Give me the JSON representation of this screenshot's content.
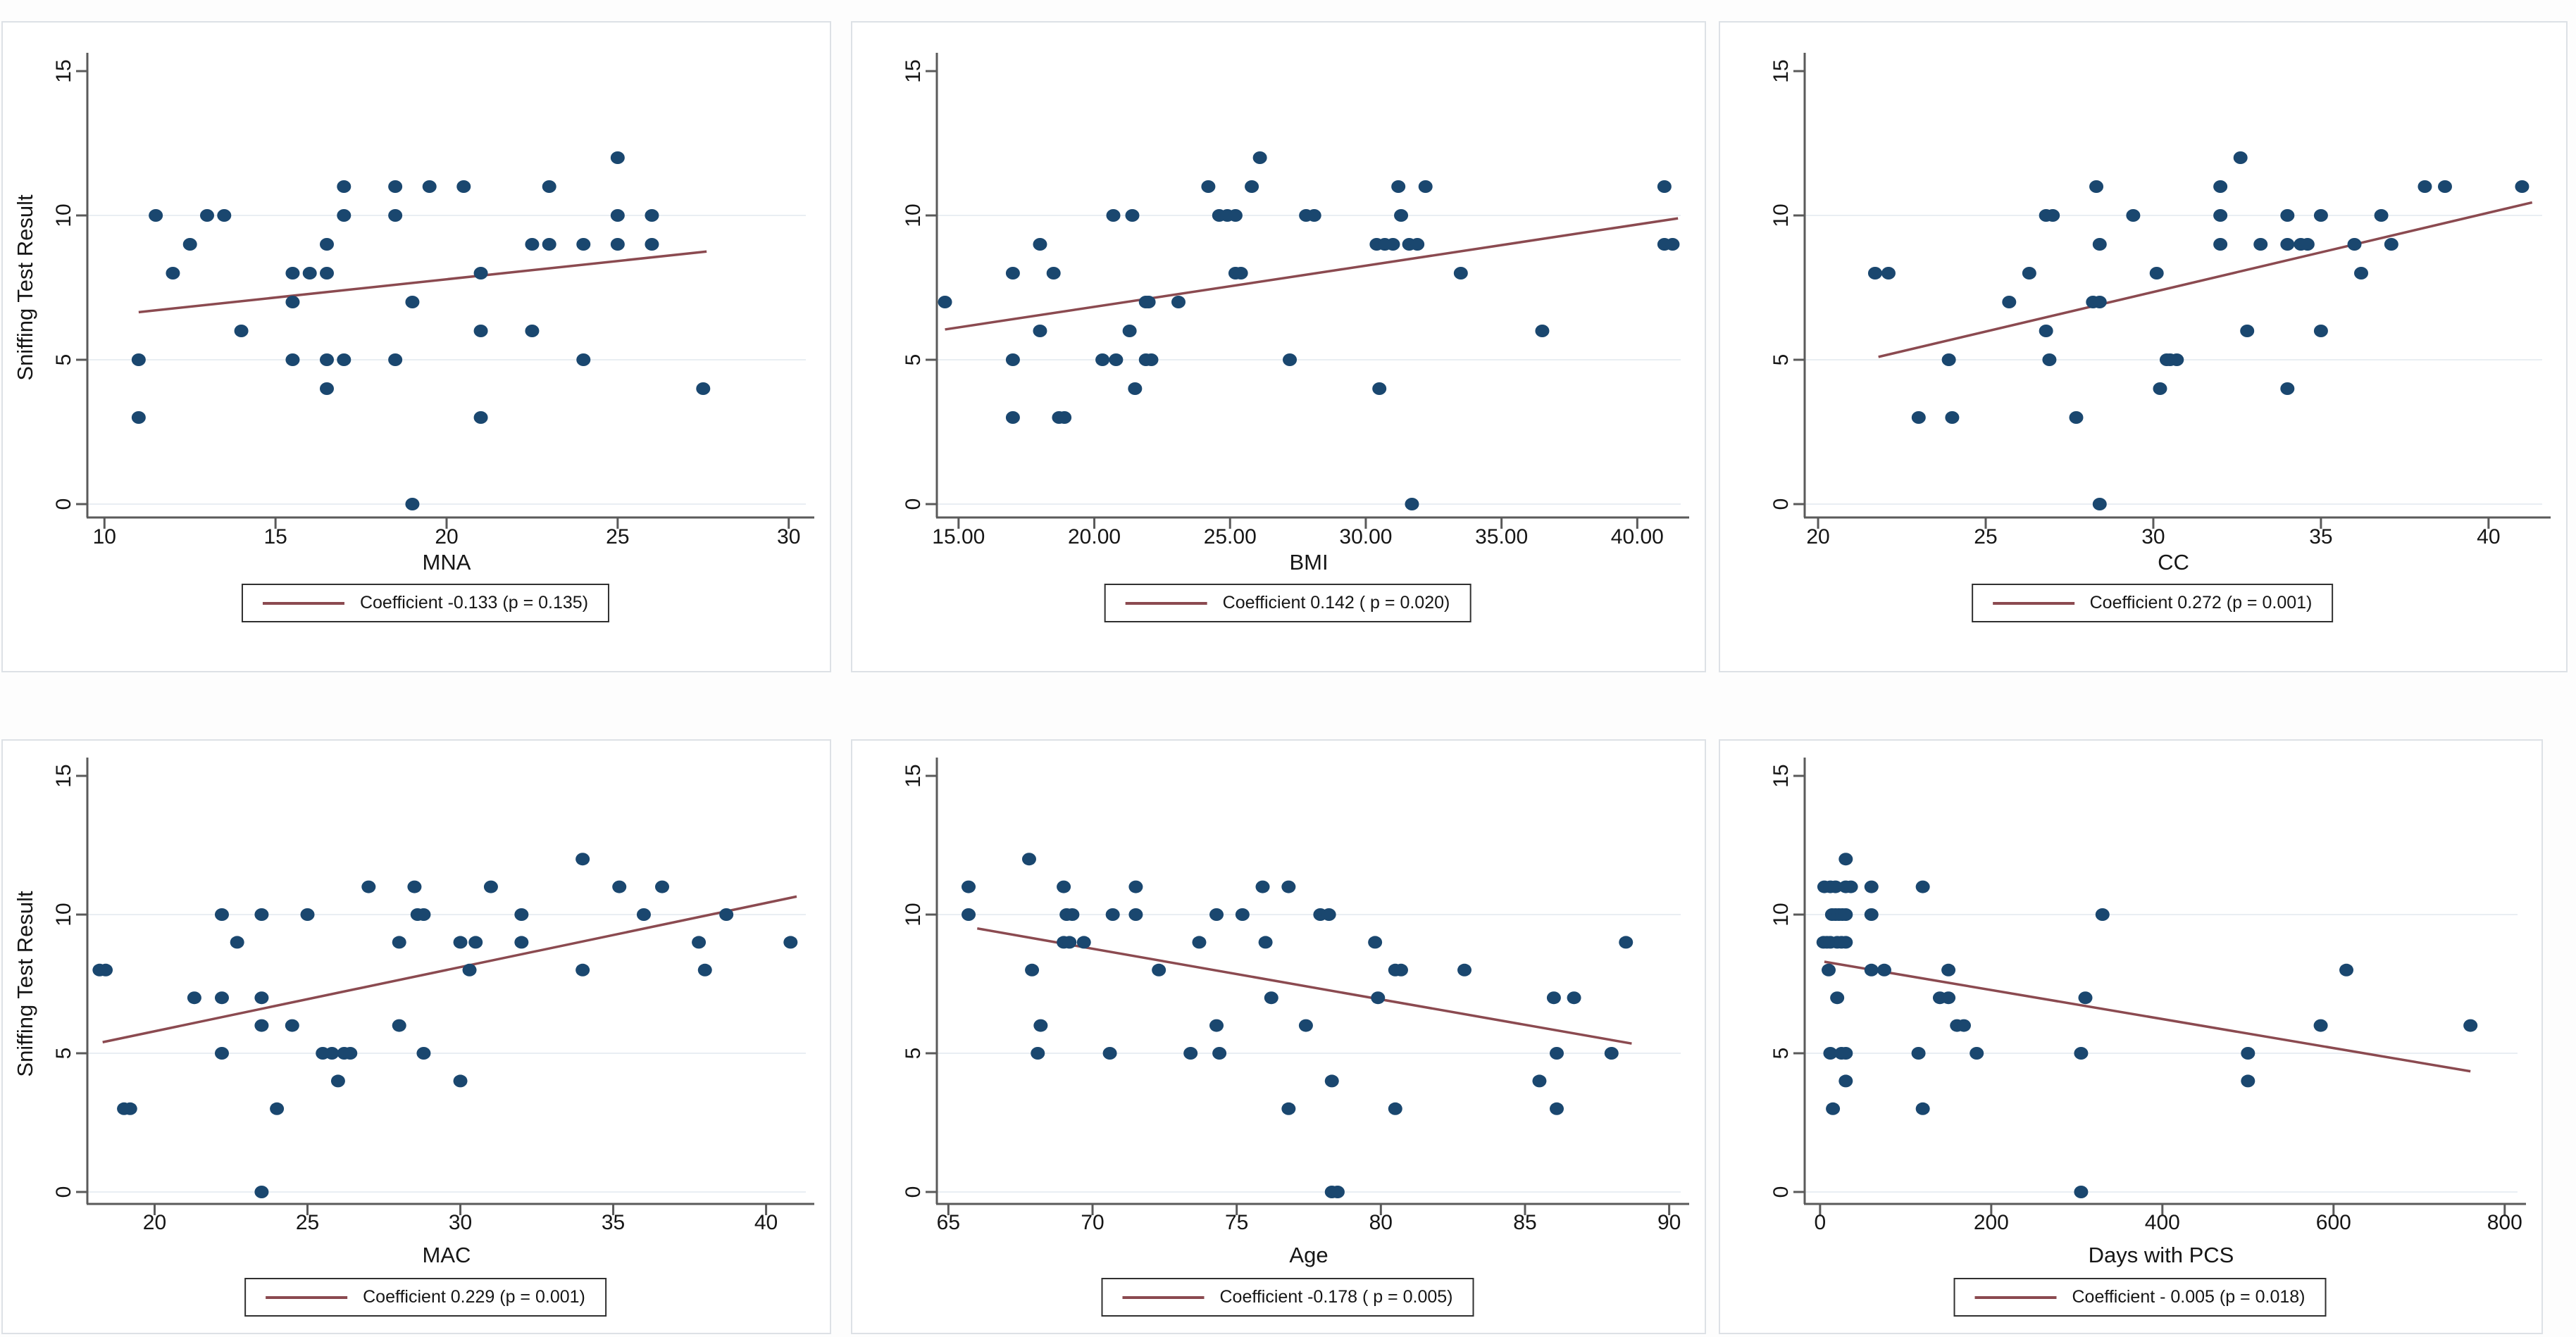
{
  "styles": {
    "page_bg": "#fdfdfd",
    "panel_bg": "#ffffff",
    "panel_border": "#dde1e6",
    "dot_color": "#1a476f",
    "trend_color": "#8b4a50",
    "grid_color": "#e9eef3",
    "axis_color": "#5a5a5a",
    "text_color": "#161616",
    "legend_border": "#303030"
  },
  "y_axis_title": "Sniffing Test Result",
  "chart_data": [
    {
      "id": "mna",
      "type": "scatter",
      "xlabel": "MNA",
      "ylabel": "Sniffing Test Result",
      "legend": "Coefficient -0.133 (p = 0.135)",
      "xlim": [
        9.5,
        30.5
      ],
      "ylim": [
        0,
        15
      ],
      "xticks": [
        10,
        15,
        20,
        25,
        30
      ],
      "xtick_labels": [
        "10",
        "15",
        "20",
        "25",
        "30"
      ],
      "yticks": [
        0,
        5,
        10,
        15
      ],
      "ytick_labels": [
        "0",
        "5",
        "10",
        "15"
      ],
      "grid_y": [
        0,
        5,
        10
      ],
      "legend_position": "bottom",
      "grid": "horizontal",
      "trend": {
        "x1": 11,
        "y1": 6.65,
        "x2": 27.6,
        "y2": 8.75
      },
      "points": [
        [
          25,
          12
        ],
        [
          17,
          11
        ],
        [
          18.5,
          11
        ],
        [
          19.5,
          11
        ],
        [
          20.5,
          11
        ],
        [
          23,
          11
        ],
        [
          11.5,
          10
        ],
        [
          13,
          10
        ],
        [
          13.5,
          10
        ],
        [
          17,
          10
        ],
        [
          18.5,
          10
        ],
        [
          25,
          10
        ],
        [
          26,
          10
        ],
        [
          12.5,
          9
        ],
        [
          16.5,
          9
        ],
        [
          22.5,
          9
        ],
        [
          23,
          9
        ],
        [
          24,
          9
        ],
        [
          25,
          9
        ],
        [
          26,
          9
        ],
        [
          12,
          8
        ],
        [
          15.5,
          8
        ],
        [
          16,
          8
        ],
        [
          16.5,
          8
        ],
        [
          21,
          8
        ],
        [
          15.5,
          7
        ],
        [
          19,
          7
        ],
        [
          14,
          6
        ],
        [
          21,
          6
        ],
        [
          22.5,
          6
        ],
        [
          11,
          5
        ],
        [
          15.5,
          5
        ],
        [
          16.5,
          5
        ],
        [
          17,
          5
        ],
        [
          18.5,
          5
        ],
        [
          24,
          5
        ],
        [
          16.5,
          4
        ],
        [
          27.5,
          4
        ],
        [
          11,
          3
        ],
        [
          21,
          3
        ],
        [
          19,
          0
        ]
      ]
    },
    {
      "id": "bmi",
      "type": "scatter",
      "xlabel": "BMI",
      "ylabel": "",
      "legend": "Coefficient 0.142 ( p = 0.020)",
      "xlim": [
        14.2,
        41.6
      ],
      "ylim": [
        0,
        15
      ],
      "xticks": [
        15,
        20,
        25,
        30,
        35,
        40
      ],
      "xtick_labels": [
        "15.00",
        "20.00",
        "25.00",
        "30.00",
        "35.00",
        "40.00"
      ],
      "yticks": [
        0,
        5,
        10,
        15
      ],
      "ytick_labels": [
        "0",
        "5",
        "10",
        "15"
      ],
      "grid_y": [
        0,
        5,
        10
      ],
      "legend_position": "bottom",
      "grid": "horizontal",
      "trend": {
        "x1": 14.5,
        "y1": 6.05,
        "x2": 41.5,
        "y2": 9.9
      },
      "points": [
        [
          26.1,
          12
        ],
        [
          24.2,
          11
        ],
        [
          25.8,
          11
        ],
        [
          31.2,
          11
        ],
        [
          32.2,
          11
        ],
        [
          41,
          11
        ],
        [
          20.7,
          10
        ],
        [
          21.4,
          10
        ],
        [
          24.6,
          10
        ],
        [
          24.9,
          10
        ],
        [
          25.2,
          10
        ],
        [
          27.8,
          10
        ],
        [
          28.1,
          10
        ],
        [
          31.3,
          10
        ],
        [
          18,
          9
        ],
        [
          30.4,
          9
        ],
        [
          30.7,
          9
        ],
        [
          31,
          9
        ],
        [
          31.6,
          9
        ],
        [
          31.9,
          9
        ],
        [
          41,
          9
        ],
        [
          41.3,
          9
        ],
        [
          17,
          8
        ],
        [
          18.5,
          8
        ],
        [
          25.2,
          8
        ],
        [
          25.4,
          8
        ],
        [
          33.5,
          8
        ],
        [
          14.5,
          7
        ],
        [
          21.9,
          7
        ],
        [
          22,
          7
        ],
        [
          23.1,
          7
        ],
        [
          18,
          6
        ],
        [
          21.3,
          6
        ],
        [
          36.5,
          6
        ],
        [
          17,
          5
        ],
        [
          20.3,
          5
        ],
        [
          20.8,
          5
        ],
        [
          21.9,
          5
        ],
        [
          22.1,
          5
        ],
        [
          27.2,
          5
        ],
        [
          21.5,
          4
        ],
        [
          30.5,
          4
        ],
        [
          17,
          3
        ],
        [
          18.7,
          3
        ],
        [
          18.9,
          3
        ],
        [
          31.7,
          0
        ]
      ]
    },
    {
      "id": "cc",
      "type": "scatter",
      "xlabel": "CC",
      "ylabel": "",
      "legend": "Coefficient 0.272 (p = 0.001)",
      "xlim": [
        19.6,
        41.6
      ],
      "ylim": [
        0,
        15
      ],
      "xticks": [
        20,
        25,
        30,
        35,
        40
      ],
      "xtick_labels": [
        "20",
        "25",
        "30",
        "35",
        "40"
      ],
      "yticks": [
        0,
        5,
        10,
        15
      ],
      "ytick_labels": [
        "0",
        "5",
        "10",
        "15"
      ],
      "grid_y": [
        0,
        5,
        10
      ],
      "legend_position": "bottom",
      "grid": "horizontal",
      "trend": {
        "x1": 21.8,
        "y1": 5.1,
        "x2": 41.3,
        "y2": 10.45
      },
      "points": [
        [
          32.6,
          12
        ],
        [
          28.3,
          11
        ],
        [
          32,
          11
        ],
        [
          38.1,
          11
        ],
        [
          38.7,
          11
        ],
        [
          41,
          11
        ],
        [
          26.8,
          10
        ],
        [
          27,
          10
        ],
        [
          29.4,
          10
        ],
        [
          32,
          10
        ],
        [
          34,
          10
        ],
        [
          35,
          10
        ],
        [
          36.8,
          10
        ],
        [
          28.4,
          9
        ],
        [
          32,
          9
        ],
        [
          33.2,
          9
        ],
        [
          34,
          9
        ],
        [
          34.4,
          9
        ],
        [
          34.6,
          9
        ],
        [
          36,
          9
        ],
        [
          37.1,
          9
        ],
        [
          21.7,
          8
        ],
        [
          22.1,
          8
        ],
        [
          26.3,
          8
        ],
        [
          30.1,
          8
        ],
        [
          36.2,
          8
        ],
        [
          25.7,
          7
        ],
        [
          28.2,
          7
        ],
        [
          28.4,
          7
        ],
        [
          26.8,
          6
        ],
        [
          32.8,
          6
        ],
        [
          35,
          6
        ],
        [
          23.9,
          5
        ],
        [
          26.9,
          5
        ],
        [
          30.4,
          5
        ],
        [
          30.5,
          5
        ],
        [
          30.7,
          5
        ],
        [
          30.2,
          4
        ],
        [
          34,
          4
        ],
        [
          23,
          3
        ],
        [
          24,
          3
        ],
        [
          27.7,
          3
        ],
        [
          28.4,
          0
        ]
      ]
    },
    {
      "id": "mac",
      "type": "scatter",
      "xlabel": "MAC",
      "ylabel": "Sniffing Test Result",
      "legend": "Coefficient 0.229 (p = 0.001)",
      "xlim": [
        17.8,
        41.3
      ],
      "ylim": [
        0,
        15
      ],
      "xticks": [
        20,
        25,
        30,
        35,
        40
      ],
      "xtick_labels": [
        "20",
        "25",
        "30",
        "35",
        "40"
      ],
      "yticks": [
        0,
        5,
        10,
        15
      ],
      "ytick_labels": [
        "0",
        "5",
        "10",
        "15"
      ],
      "grid_y": [
        0,
        5,
        10
      ],
      "legend_position": "bottom",
      "grid": "horizontal",
      "trend": {
        "x1": 18.3,
        "y1": 5.4,
        "x2": 41,
        "y2": 10.65
      },
      "points": [
        [
          34,
          12
        ],
        [
          27,
          11
        ],
        [
          28.5,
          11
        ],
        [
          31,
          11
        ],
        [
          35.2,
          11
        ],
        [
          36.6,
          11
        ],
        [
          22.2,
          10
        ],
        [
          23.5,
          10
        ],
        [
          25,
          10
        ],
        [
          28.6,
          10
        ],
        [
          28.8,
          10
        ],
        [
          32,
          10
        ],
        [
          36,
          10
        ],
        [
          38.7,
          10
        ],
        [
          22.7,
          9
        ],
        [
          28,
          9
        ],
        [
          30,
          9
        ],
        [
          30.5,
          9
        ],
        [
          32,
          9
        ],
        [
          37.8,
          9
        ],
        [
          40.8,
          9
        ],
        [
          18.2,
          8
        ],
        [
          18.4,
          8
        ],
        [
          30.3,
          8
        ],
        [
          34,
          8
        ],
        [
          38,
          8
        ],
        [
          21.3,
          7
        ],
        [
          22.2,
          7
        ],
        [
          23.5,
          7
        ],
        [
          23.5,
          6
        ],
        [
          24.5,
          6
        ],
        [
          28,
          6
        ],
        [
          22.2,
          5
        ],
        [
          25.5,
          5
        ],
        [
          25.8,
          5
        ],
        [
          26.2,
          5
        ],
        [
          26.4,
          5
        ],
        [
          28.8,
          5
        ],
        [
          26,
          4
        ],
        [
          30,
          4
        ],
        [
          19,
          3
        ],
        [
          19.2,
          3
        ],
        [
          24,
          3
        ],
        [
          23.5,
          0
        ]
      ]
    },
    {
      "id": "age",
      "type": "scatter",
      "xlabel": "Age",
      "ylabel": "",
      "legend": "Coefficient -0.178 ( p = 0.005)",
      "xlim": [
        64.6,
        90.4
      ],
      "ylim": [
        0,
        15
      ],
      "xticks": [
        65,
        70,
        75,
        80,
        85,
        90
      ],
      "xtick_labels": [
        "65",
        "70",
        "75",
        "80",
        "85",
        "90"
      ],
      "yticks": [
        0,
        5,
        10,
        15
      ],
      "ytick_labels": [
        "0",
        "5",
        "10",
        "15"
      ],
      "grid_y": [
        0,
        5,
        10
      ],
      "legend_position": "bottom",
      "grid": "horizontal",
      "trend": {
        "x1": 66,
        "y1": 9.5,
        "x2": 88.7,
        "y2": 5.35
      },
      "points": [
        [
          67.8,
          12
        ],
        [
          65.7,
          11
        ],
        [
          69,
          11
        ],
        [
          71.5,
          11
        ],
        [
          75.9,
          11
        ],
        [
          76.8,
          11
        ],
        [
          65.7,
          10
        ],
        [
          69.1,
          10
        ],
        [
          69.3,
          10
        ],
        [
          70.7,
          10
        ],
        [
          71.5,
          10
        ],
        [
          74.3,
          10
        ],
        [
          75.2,
          10
        ],
        [
          77.9,
          10
        ],
        [
          78.2,
          10
        ],
        [
          69,
          9
        ],
        [
          69.2,
          9
        ],
        [
          69.7,
          9
        ],
        [
          73.7,
          9
        ],
        [
          76,
          9
        ],
        [
          79.8,
          9
        ],
        [
          88.5,
          9
        ],
        [
          67.9,
          8
        ],
        [
          72.3,
          8
        ],
        [
          80.5,
          8
        ],
        [
          80.7,
          8
        ],
        [
          82.9,
          8
        ],
        [
          76.2,
          7
        ],
        [
          79.9,
          7
        ],
        [
          86,
          7
        ],
        [
          86.7,
          7
        ],
        [
          68.2,
          6
        ],
        [
          74.3,
          6
        ],
        [
          77.4,
          6
        ],
        [
          68.1,
          5
        ],
        [
          70.6,
          5
        ],
        [
          73.4,
          5
        ],
        [
          74.4,
          5
        ],
        [
          86.1,
          5
        ],
        [
          88,
          5
        ],
        [
          78.3,
          4
        ],
        [
          85.5,
          4
        ],
        [
          76.8,
          3
        ],
        [
          80.5,
          3
        ],
        [
          86.1,
          3
        ],
        [
          78.3,
          0
        ],
        [
          78.5,
          0
        ]
      ]
    },
    {
      "id": "days-with-pcs",
      "type": "scatter",
      "xlabel": "Days with PCS",
      "ylabel": "",
      "legend": "Coefficient - 0.005 (p = 0.018)",
      "xlim": [
        -18,
        815
      ],
      "ylim": [
        0,
        15
      ],
      "xticks": [
        0,
        200,
        400,
        600,
        800
      ],
      "xtick_labels": [
        "0",
        "200",
        "400",
        "600",
        "800"
      ],
      "yticks": [
        0,
        5,
        10,
        15
      ],
      "ytick_labels": [
        "0",
        "5",
        "10",
        "15"
      ],
      "grid_y": [
        0,
        5,
        10
      ],
      "legend_position": "bottom",
      "grid": "horizontal",
      "trend": {
        "x1": 5,
        "y1": 8.3,
        "x2": 760,
        "y2": 4.35
      },
      "points": [
        [
          30,
          12
        ],
        [
          5,
          11
        ],
        [
          12,
          11
        ],
        [
          18,
          11
        ],
        [
          30,
          11
        ],
        [
          36,
          11
        ],
        [
          60,
          11
        ],
        [
          120,
          11
        ],
        [
          14,
          10
        ],
        [
          18,
          10
        ],
        [
          22,
          10
        ],
        [
          26,
          10
        ],
        [
          30,
          10
        ],
        [
          60,
          10
        ],
        [
          330,
          10
        ],
        [
          4,
          9
        ],
        [
          8,
          9
        ],
        [
          12,
          9
        ],
        [
          20,
          9
        ],
        [
          25,
          9
        ],
        [
          30,
          9
        ],
        [
          10,
          8
        ],
        [
          60,
          8
        ],
        [
          75,
          8
        ],
        [
          150,
          8
        ],
        [
          615,
          8
        ],
        [
          20,
          7
        ],
        [
          140,
          7
        ],
        [
          150,
          7
        ],
        [
          310,
          7
        ],
        [
          160,
          6
        ],
        [
          168,
          6
        ],
        [
          585,
          6
        ],
        [
          760,
          6
        ],
        [
          12,
          5
        ],
        [
          25,
          5
        ],
        [
          30,
          5
        ],
        [
          115,
          5
        ],
        [
          183,
          5
        ],
        [
          305,
          5
        ],
        [
          500,
          5
        ],
        [
          30,
          4
        ],
        [
          500,
          4
        ],
        [
          15,
          3
        ],
        [
          120,
          3
        ],
        [
          305,
          0
        ]
      ]
    }
  ]
}
